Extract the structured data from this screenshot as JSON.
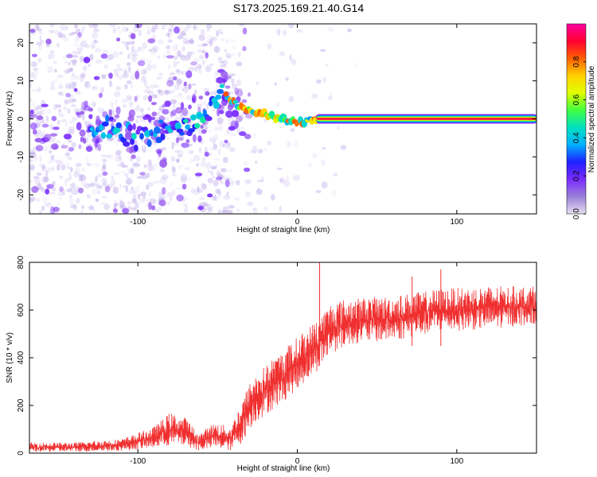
{
  "title": "S173.2025.169.21.40.G14",
  "chart_data": [
    {
      "type": "heatmap",
      "panel": "spectrogram",
      "xlabel": "Height of straight line (km)",
      "ylabel": "Frequency (Hz)",
      "xlim": [
        -168,
        150
      ],
      "ylim": [
        -25,
        25
      ],
      "xticks": [
        -100,
        0,
        100
      ],
      "yticks": [
        -20,
        -10,
        0,
        10,
        20
      ],
      "colorbar": {
        "label": "Normalized spectral amplitude",
        "range": [
          0,
          1
        ],
        "ticks": [
          0.0,
          0.2,
          0.4,
          0.6,
          0.8
        ],
        "colormap": [
          "#e6e0f0",
          "#9a7fd8",
          "#7a2cff",
          "#2020ff",
          "#00b0ff",
          "#00e0c0",
          "#40ff40",
          "#e0ff00",
          "#ffd000",
          "#ff6000",
          "#ff0030",
          "#ff00a0"
        ]
      },
      "ridge": [
        {
          "x": -120,
          "y": -2
        },
        {
          "x": -100,
          "y": -5
        },
        {
          "x": -85,
          "y": -3
        },
        {
          "x": -72,
          "y": -2
        },
        {
          "x": -62,
          "y": 0
        },
        {
          "x": -55,
          "y": 3
        },
        {
          "x": -47,
          "y": 8
        },
        {
          "x": -42,
          "y": 5
        },
        {
          "x": -35,
          "y": 3
        },
        {
          "x": -28,
          "y": 2
        },
        {
          "x": -20,
          "y": 1.5
        },
        {
          "x": -15,
          "y": 0.5
        },
        {
          "x": -8,
          "y": 0
        },
        {
          "x": 0,
          "y": -1
        },
        {
          "x": 8,
          "y": -0.5
        },
        {
          "x": 12,
          "y": 0
        },
        {
          "x": 150,
          "y": 0
        }
      ],
      "tone_frequency": 0,
      "tone_start": 12
    },
    {
      "type": "line",
      "panel": "snr",
      "xlabel": "Height of straight line (km)",
      "ylabel": "SNR (10 * v/v)",
      "xlim": [
        -168,
        150
      ],
      "ylim": [
        0,
        800
      ],
      "xticks": [
        -100,
        0,
        100
      ],
      "yticks": [
        0,
        200,
        400,
        600,
        800
      ],
      "color": "#f03030",
      "envelope": [
        {
          "x": -168,
          "low": 5,
          "high": 45
        },
        {
          "x": -140,
          "low": 5,
          "high": 45
        },
        {
          "x": -110,
          "low": 10,
          "high": 60
        },
        {
          "x": -90,
          "low": 20,
          "high": 110
        },
        {
          "x": -80,
          "low": 30,
          "high": 170
        },
        {
          "x": -70,
          "low": 30,
          "high": 150
        },
        {
          "x": -62,
          "low": 10,
          "high": 80
        },
        {
          "x": -52,
          "low": 20,
          "high": 130
        },
        {
          "x": -42,
          "low": 10,
          "high": 110
        },
        {
          "x": -35,
          "low": 40,
          "high": 220
        },
        {
          "x": -28,
          "low": 120,
          "high": 320
        },
        {
          "x": -18,
          "low": 170,
          "high": 380
        },
        {
          "x": -8,
          "low": 220,
          "high": 440
        },
        {
          "x": 2,
          "low": 280,
          "high": 500
        },
        {
          "x": 12,
          "low": 340,
          "high": 560
        },
        {
          "x": 22,
          "low": 420,
          "high": 640
        },
        {
          "x": 35,
          "low": 460,
          "high": 650
        },
        {
          "x": 60,
          "low": 470,
          "high": 660
        },
        {
          "x": 90,
          "low": 510,
          "high": 690
        },
        {
          "x": 120,
          "low": 520,
          "high": 700
        },
        {
          "x": 150,
          "low": 540,
          "high": 700
        }
      ],
      "spikes": [
        {
          "x": 14,
          "y": 800
        },
        {
          "x": 90,
          "y": 770
        },
        {
          "x": 72,
          "y": 740
        }
      ]
    }
  ]
}
